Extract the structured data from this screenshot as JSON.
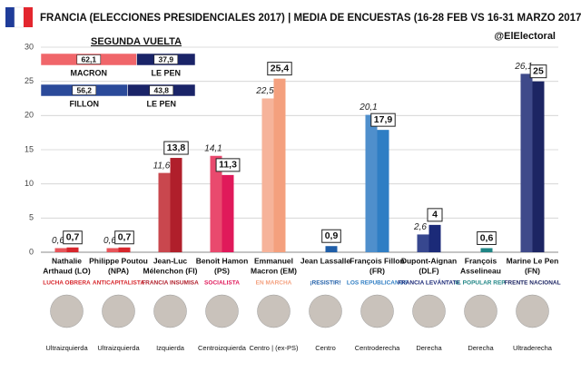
{
  "chart_data": [
    {
      "type": "bar",
      "title": "FRANCIA (ELECCIONES PRESIDENCIALES 2017) | MEDIA DE ENCUESTAS (16-28 FEB VS 16-31 MARZO 2017)",
      "source": "@ElElectoral",
      "categories": [
        [
          "Nathalie",
          "Arthaud (LO)"
        ],
        [
          "Philippe Poutou",
          "(NPA)"
        ],
        [
          "Jean-Luc",
          "Mélenchon (FI)"
        ],
        [
          "Benoît Hamon",
          "(PS)"
        ],
        [
          "Emmanuel",
          "Macron (EM)"
        ],
        [
          "Jean Lassalle",
          ""
        ],
        [
          "François Fillon",
          "(FR)"
        ],
        [
          "Dupont-Aignan",
          "(DLF)"
        ],
        [
          "François",
          "Asselineau"
        ],
        [
          "Marine Le Pen",
          "(FN)"
        ]
      ],
      "parties": [
        "LUCHA OBRERA",
        "ANTICAPITALISTA",
        "FRANCIA INSUMISA",
        "SOCIALISTA",
        "EN MARCHA",
        "¡RESISTIR!",
        "LOS REPUBLICANOS",
        "FRANCIA LEVÁNTATE",
        "U. POPULAR REP.",
        "FRENTE NACIONAL"
      ],
      "ideologies": [
        "Ultraizquierda",
        "Ultraizquierda",
        "Izquierda",
        "Centroizquierda",
        "Centro | (ex-PS)",
        "Centro",
        "Centroderecha",
        "Derecha",
        "Derecha",
        "Ultraderecha"
      ],
      "series": [
        {
          "values": [
            0.6,
            0.6,
            11.6,
            14.1,
            22.5,
            null,
            20.1,
            2.6,
            null,
            26.1
          ],
          "value_labels": [
            "0,6",
            "0,6",
            "11,6",
            "14,1",
            "22,5",
            null,
            "20,1",
            "2,6",
            null,
            "26,1"
          ],
          "colors": [
            "#e8555a",
            "#e8555a",
            "#c9474e",
            "#e94a6e",
            "#f6b39a",
            "#3a6cb0",
            "#4f8fcc",
            "#37478f",
            "#3d9b9b",
            "#3f4a8a"
          ]
        },
        {
          "values": [
            0.7,
            0.7,
            13.8,
            11.3,
            25.4,
            0.9,
            17.9,
            4,
            0.6,
            25
          ],
          "value_labels": [
            "0,7",
            "0,7",
            "13,8",
            "11,3",
            "25,4",
            "0,9",
            "17,9",
            "4",
            "0,6",
            "25"
          ],
          "colors": [
            "#d7262c",
            "#d7262c",
            "#b01f2b",
            "#e0195a",
            "#f4a07e",
            "#1f5ea8",
            "#2f7ec4",
            "#1b2a78",
            "#1f8585",
            "#1c2563"
          ]
        }
      ],
      "ylim": [
        0,
        30
      ],
      "yticks": [
        0,
        5,
        10,
        15,
        20,
        25,
        30
      ],
      "grid": true
    },
    {
      "type": "stacked_hbar",
      "title": "SEGUNDA VUELTA",
      "xlim": [
        0,
        100
      ],
      "rows": [
        {
          "names": [
            "MACRON",
            "LE PEN"
          ],
          "values": [
            62.1,
            37.9
          ],
          "value_labels": [
            "62,1",
            "37,9"
          ],
          "colors": [
            "#f0666a",
            "#1a2468"
          ]
        },
        {
          "names": [
            "FILLON",
            "LE PEN"
          ],
          "values": [
            56.2,
            43.8
          ],
          "value_labels": [
            "56,2",
            "43,8"
          ],
          "colors": [
            "#2b4a9a",
            "#1a2468"
          ]
        }
      ]
    }
  ]
}
